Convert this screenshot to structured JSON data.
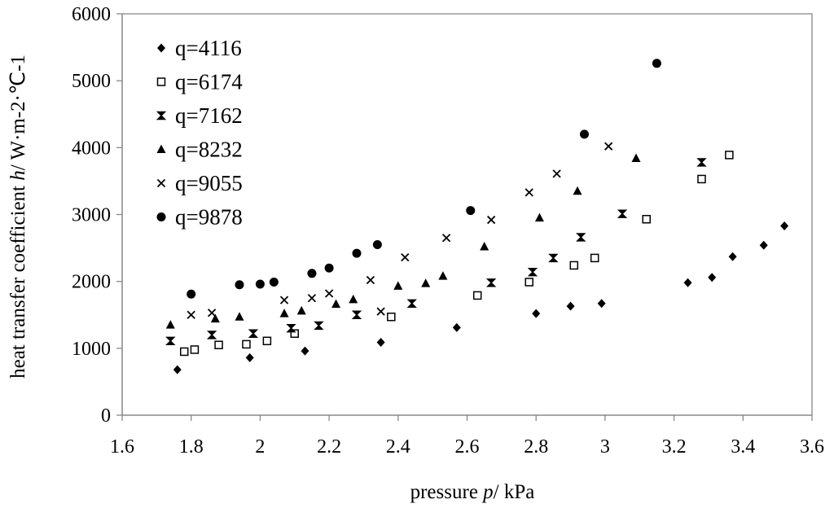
{
  "chart_data": {
    "type": "scatter",
    "title": "",
    "xlabel": {
      "prefix": "pressure ",
      "variable": "p",
      "suffix": "/ kPa"
    },
    "ylabel": {
      "prefix": "heat transfer coefficient ",
      "variable": "h",
      "suffix": "/ W·m-2·℃-1"
    },
    "xlim": [
      1.6,
      3.6
    ],
    "ylim": [
      0,
      6000
    ],
    "xticks": [
      "1.6",
      "1.8",
      "2",
      "2.2",
      "2.4",
      "2.6",
      "2.8",
      "3",
      "3.2",
      "3.4",
      "3.6"
    ],
    "yticks": [
      "0",
      "1000",
      "2000",
      "3000",
      "4000",
      "5000",
      "6000"
    ],
    "grid": false,
    "legend_position": "top-left",
    "series": [
      {
        "name": "q=4116",
        "marker": "diamond",
        "points": [
          [
            1.76,
            680
          ],
          [
            1.97,
            860
          ],
          [
            2.13,
            960
          ],
          [
            2.35,
            1090
          ],
          [
            2.57,
            1310
          ],
          [
            2.8,
            1520
          ],
          [
            2.9,
            1630
          ],
          [
            2.99,
            1670
          ],
          [
            3.24,
            1980
          ],
          [
            3.31,
            2060
          ],
          [
            3.37,
            2370
          ],
          [
            3.46,
            2540
          ],
          [
            3.52,
            2830
          ]
        ]
      },
      {
        "name": "q=6174",
        "marker": "open-square",
        "points": [
          [
            1.78,
            950
          ],
          [
            1.81,
            980
          ],
          [
            1.88,
            1050
          ],
          [
            1.96,
            1060
          ],
          [
            2.02,
            1110
          ],
          [
            2.1,
            1220
          ],
          [
            2.38,
            1470
          ],
          [
            2.63,
            1790
          ],
          [
            2.78,
            1990
          ],
          [
            2.91,
            2240
          ],
          [
            2.97,
            2350
          ],
          [
            3.12,
            2930
          ],
          [
            3.28,
            3530
          ],
          [
            3.36,
            3890
          ]
        ]
      },
      {
        "name": "q=7162",
        "marker": "hourglass",
        "points": [
          [
            1.74,
            1110
          ],
          [
            1.86,
            1200
          ],
          [
            1.98,
            1220
          ],
          [
            2.09,
            1300
          ],
          [
            2.17,
            1340
          ],
          [
            2.28,
            1500
          ],
          [
            2.44,
            1670
          ],
          [
            2.67,
            1980
          ],
          [
            2.79,
            2140
          ],
          [
            2.85,
            2350
          ],
          [
            2.93,
            2660
          ],
          [
            3.05,
            3010
          ],
          [
            3.28,
            3780
          ]
        ]
      },
      {
        "name": "q=8232",
        "marker": "triangle",
        "points": [
          [
            1.74,
            1350
          ],
          [
            1.87,
            1440
          ],
          [
            1.94,
            1470
          ],
          [
            2.07,
            1520
          ],
          [
            2.12,
            1560
          ],
          [
            2.22,
            1660
          ],
          [
            2.27,
            1730
          ],
          [
            2.4,
            1930
          ],
          [
            2.48,
            1970
          ],
          [
            2.53,
            2080
          ],
          [
            2.65,
            2520
          ],
          [
            2.81,
            2950
          ],
          [
            2.92,
            3350
          ],
          [
            3.09,
            3840
          ]
        ]
      },
      {
        "name": "q=9055",
        "marker": "x",
        "points": [
          [
            1.8,
            1500
          ],
          [
            1.86,
            1530
          ],
          [
            2.07,
            1720
          ],
          [
            2.15,
            1750
          ],
          [
            2.2,
            1820
          ],
          [
            2.32,
            2020
          ],
          [
            2.35,
            1550
          ],
          [
            2.42,
            2360
          ],
          [
            2.54,
            2650
          ],
          [
            2.67,
            2920
          ],
          [
            2.78,
            3330
          ],
          [
            2.86,
            3610
          ],
          [
            3.01,
            4020
          ]
        ]
      },
      {
        "name": "q=9878",
        "marker": "circle",
        "points": [
          [
            1.8,
            1810
          ],
          [
            1.94,
            1950
          ],
          [
            2.0,
            1960
          ],
          [
            2.04,
            1990
          ],
          [
            2.15,
            2120
          ],
          [
            2.2,
            2200
          ],
          [
            2.28,
            2420
          ],
          [
            2.34,
            2550
          ],
          [
            2.61,
            3060
          ],
          [
            2.94,
            4200
          ],
          [
            3.15,
            5260
          ]
        ]
      }
    ]
  }
}
